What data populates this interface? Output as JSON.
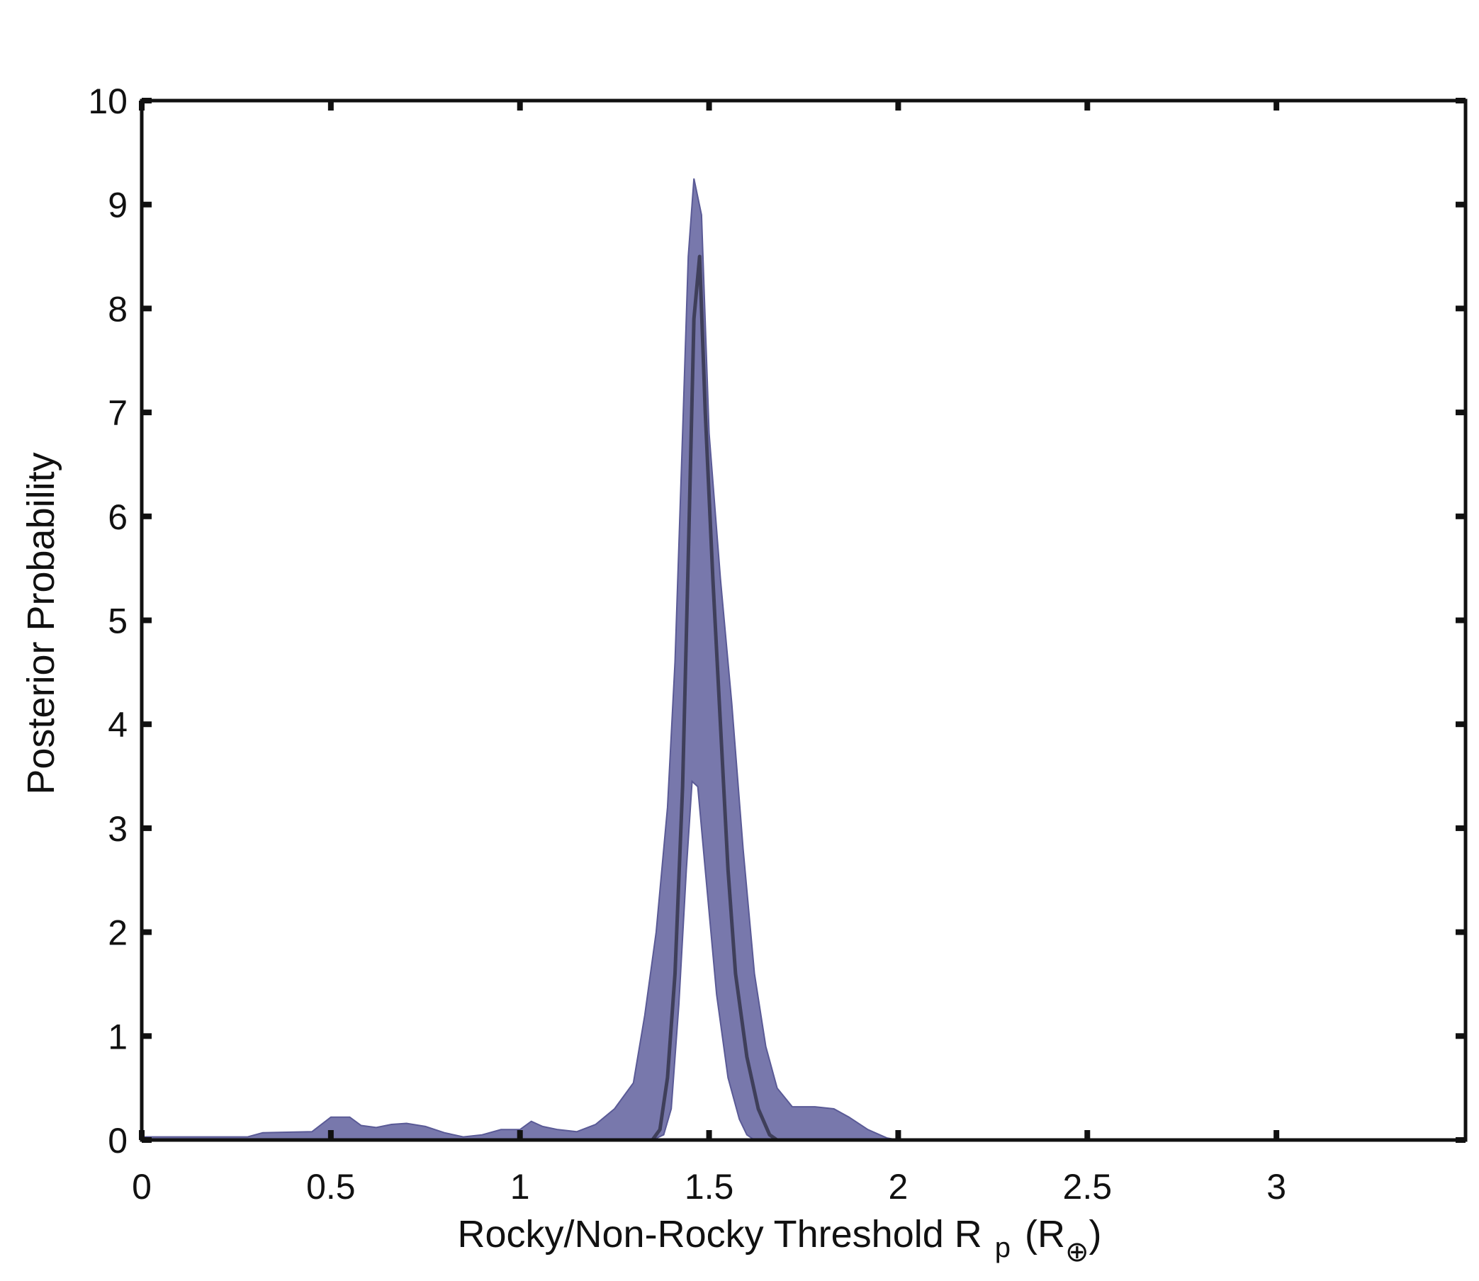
{
  "chart_data": {
    "type": "area",
    "xlabel": {
      "main": "Rocky/Non-Rocky Threshold R",
      "sub": "p",
      "unit_open": "(R",
      "unit_symbol": "⊕",
      "unit_close": ")"
    },
    "ylabel": "Posterior Probability",
    "xlim": [
      0,
      3.5
    ],
    "ylim": [
      0,
      10
    ],
    "xticks": [
      0,
      0.5,
      1,
      1.5,
      2,
      2.5,
      3
    ],
    "xtick_labels": [
      "0",
      "0.5",
      "1",
      "1.5",
      "2",
      "2.5",
      "3"
    ],
    "yticks": [
      0,
      1,
      2,
      3,
      4,
      5,
      6,
      7,
      8,
      9,
      10
    ],
    "ytick_labels": [
      "0",
      "1",
      "2",
      "3",
      "4",
      "5",
      "6",
      "7",
      "8",
      "9",
      "10"
    ],
    "grid": false,
    "colors": {
      "band": "#7878ac",
      "band_edge": "#5a5a96",
      "median": "#3f3f5a",
      "axis": "#111111"
    },
    "band_upper": [
      [
        0,
        0.03
      ],
      [
        0.1,
        0.03
      ],
      [
        0.2,
        0.03
      ],
      [
        0.28,
        0.03
      ],
      [
        0.32,
        0.07
      ],
      [
        0.45,
        0.08
      ],
      [
        0.5,
        0.22
      ],
      [
        0.55,
        0.22
      ],
      [
        0.58,
        0.14
      ],
      [
        0.62,
        0.12
      ],
      [
        0.66,
        0.15
      ],
      [
        0.7,
        0.16
      ],
      [
        0.75,
        0.13
      ],
      [
        0.8,
        0.07
      ],
      [
        0.85,
        0.03
      ],
      [
        0.9,
        0.05
      ],
      [
        0.95,
        0.1
      ],
      [
        1.0,
        0.1
      ],
      [
        1.03,
        0.18
      ],
      [
        1.06,
        0.13
      ],
      [
        1.1,
        0.1
      ],
      [
        1.15,
        0.08
      ],
      [
        1.2,
        0.15
      ],
      [
        1.25,
        0.3
      ],
      [
        1.3,
        0.55
      ],
      [
        1.33,
        1.2
      ],
      [
        1.36,
        2.0
      ],
      [
        1.39,
        3.2
      ],
      [
        1.41,
        4.6
      ],
      [
        1.43,
        6.8
      ],
      [
        1.445,
        8.5
      ],
      [
        1.46,
        9.25
      ],
      [
        1.48,
        8.9
      ],
      [
        1.5,
        6.8
      ],
      [
        1.53,
        5.4
      ],
      [
        1.56,
        4.2
      ],
      [
        1.59,
        2.8
      ],
      [
        1.62,
        1.6
      ],
      [
        1.65,
        0.9
      ],
      [
        1.68,
        0.5
      ],
      [
        1.72,
        0.32
      ],
      [
        1.78,
        0.32
      ],
      [
        1.83,
        0.3
      ],
      [
        1.87,
        0.22
      ],
      [
        1.92,
        0.1
      ],
      [
        1.97,
        0.02
      ],
      [
        2.0,
        0.0
      ]
    ],
    "band_lower": [
      [
        0,
        0.0
      ],
      [
        1.0,
        0.0
      ],
      [
        1.2,
        0.0
      ],
      [
        1.35,
        0.0
      ],
      [
        1.38,
        0.05
      ],
      [
        1.4,
        0.3
      ],
      [
        1.42,
        1.3
      ],
      [
        1.44,
        2.6
      ],
      [
        1.455,
        3.45
      ],
      [
        1.47,
        3.4
      ],
      [
        1.49,
        2.6
      ],
      [
        1.52,
        1.4
      ],
      [
        1.55,
        0.6
      ],
      [
        1.58,
        0.2
      ],
      [
        1.6,
        0.05
      ],
      [
        1.62,
        0.0
      ],
      [
        2.0,
        0.0
      ]
    ],
    "median": [
      [
        1.35,
        0.0
      ],
      [
        1.37,
        0.1
      ],
      [
        1.39,
        0.6
      ],
      [
        1.41,
        1.6
      ],
      [
        1.43,
        3.4
      ],
      [
        1.445,
        5.6
      ],
      [
        1.46,
        7.9
      ],
      [
        1.475,
        8.5
      ],
      [
        1.49,
        7.0
      ],
      [
        1.51,
        5.4
      ],
      [
        1.53,
        4.0
      ],
      [
        1.55,
        2.6
      ],
      [
        1.57,
        1.6
      ],
      [
        1.6,
        0.8
      ],
      [
        1.63,
        0.3
      ],
      [
        1.66,
        0.05
      ],
      [
        1.68,
        0.0
      ]
    ]
  }
}
